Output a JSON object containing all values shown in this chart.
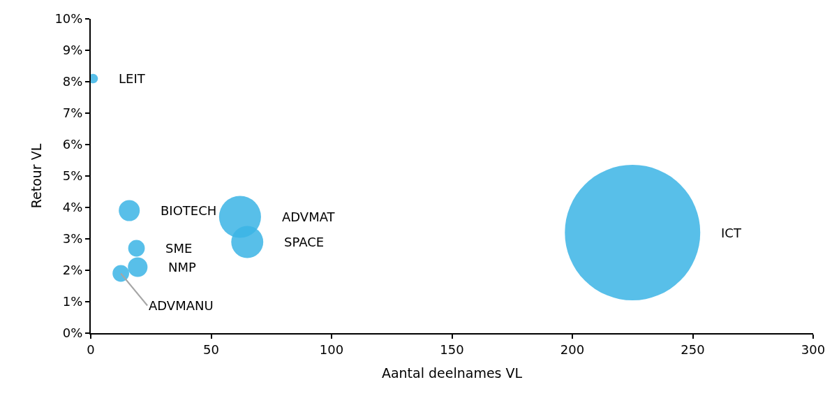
{
  "chart_data": {
    "type": "bubble",
    "xlabel": "Aantal deelnames VL",
    "ylabel": "Retour VL",
    "series": [
      {
        "name": "LEIT",
        "color": "#3bb4e5",
        "x": [
          1
        ],
        "values": [
          8.1
        ],
        "sizes": [
          0.005
        ]
      },
      {
        "name": "BIOTECH",
        "color": "#3bb4e5",
        "x": [
          16
        ],
        "values": [
          3.9
        ],
        "sizes": [
          0.024
        ]
      },
      {
        "name": "SME",
        "color": "#3bb4e5",
        "x": [
          19
        ],
        "values": [
          2.7
        ],
        "sizes": [
          0.015
        ]
      },
      {
        "name": "NMP",
        "color": "#3bb4e5",
        "x": [
          19.5
        ],
        "values": [
          2.1
        ],
        "sizes": [
          0.021
        ]
      },
      {
        "name": "ADVMANU",
        "color": "#3bb4e5",
        "x": [
          12.5
        ],
        "values": [
          1.9
        ],
        "sizes": [
          0.015
        ]
      },
      {
        "name": "ADVMAT",
        "color": "#3bb4e5",
        "x": [
          62
        ],
        "values": [
          3.7
        ],
        "sizes": [
          0.096
        ]
      },
      {
        "name": "SPACE",
        "color": "#3bb4e5",
        "x": [
          65
        ],
        "values": [
          2.9
        ],
        "sizes": [
          0.056
        ]
      },
      {
        "name": "ICT",
        "color": "#3bb4e5",
        "x": [
          225
        ],
        "values": [
          3.2
        ],
        "sizes": [
          1
        ]
      }
    ],
    "xlim": [
      0,
      300
    ],
    "xticks": [
      0,
      50,
      100,
      150,
      200,
      250,
      300
    ],
    "ylim": [
      0,
      10
    ],
    "yticks": [
      {
        "value": 0,
        "label": "0%"
      },
      {
        "value": 1,
        "label": "1%"
      },
      {
        "value": 2,
        "label": "2%"
      },
      {
        "value": 3,
        "label": "3%"
      },
      {
        "value": 4,
        "label": "4%"
      },
      {
        "value": 5,
        "label": "5%"
      },
      {
        "value": 6,
        "label": "6%"
      },
      {
        "value": 7,
        "label": "7%"
      },
      {
        "value": 8,
        "label": "8%"
      },
      {
        "value": 9,
        "label": "9%"
      },
      {
        "value": 10,
        "label": "10%"
      }
    ],
    "grid": false,
    "legend": false
  }
}
